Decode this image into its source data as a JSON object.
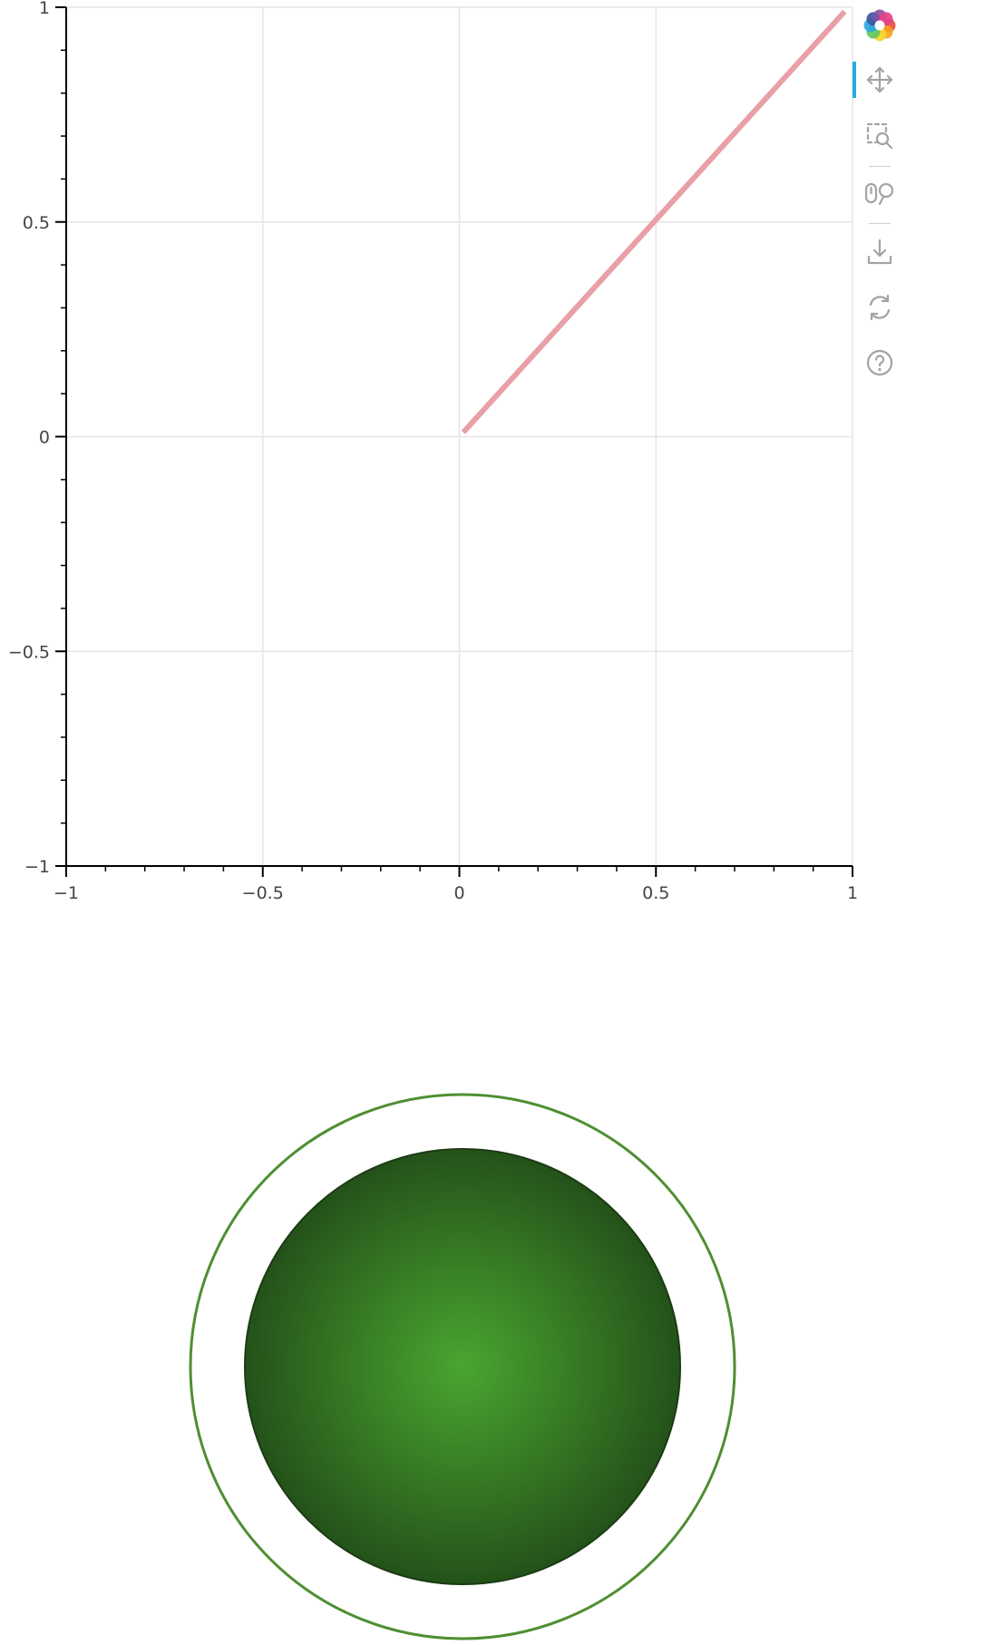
{
  "chart_data": {
    "type": "line",
    "title": "",
    "xlabel": "",
    "ylabel": "",
    "xlim": [
      -1,
      1
    ],
    "ylim": [
      -1,
      1
    ],
    "grid": true,
    "x_ticks": [
      -1,
      -0.5,
      0,
      0.5,
      1
    ],
    "y_ticks": [
      -1,
      -0.5,
      0,
      0.5,
      1
    ],
    "x_tick_labels": [
      "−1",
      "−0.5",
      "0",
      "0.5",
      "1"
    ],
    "y_tick_labels": [
      "−1",
      "−0.5",
      "0",
      "0.5",
      "1"
    ],
    "series": [
      {
        "x": [
          0.01,
          0.98
        ],
        "y": [
          0.01,
          0.99
        ],
        "color": "#e8a0a6"
      }
    ]
  },
  "toolbar": {
    "tools": [
      {
        "icon": "bokeh-logo-icon",
        "active": false
      },
      {
        "icon": "pan-icon",
        "active": true
      },
      {
        "icon": "box-zoom-icon",
        "active": false
      },
      {
        "icon": "wheel-zoom-icon",
        "active": false
      },
      {
        "icon": "save-icon",
        "active": false
      },
      {
        "icon": "reset-icon",
        "active": false
      },
      {
        "icon": "help-icon",
        "active": false
      }
    ],
    "accent_color": "#26aae1",
    "icon_color": "#a3a3a3"
  },
  "indicator": {
    "ring_color": "#4e8f32",
    "fill_center_color": "#4aa52f",
    "fill_edge_color": "#24521a",
    "border_color": "#1c3a14"
  },
  "colors": {
    "grid": "#e6e6e6",
    "axis": "#000000",
    "tick_label": "#444444"
  }
}
